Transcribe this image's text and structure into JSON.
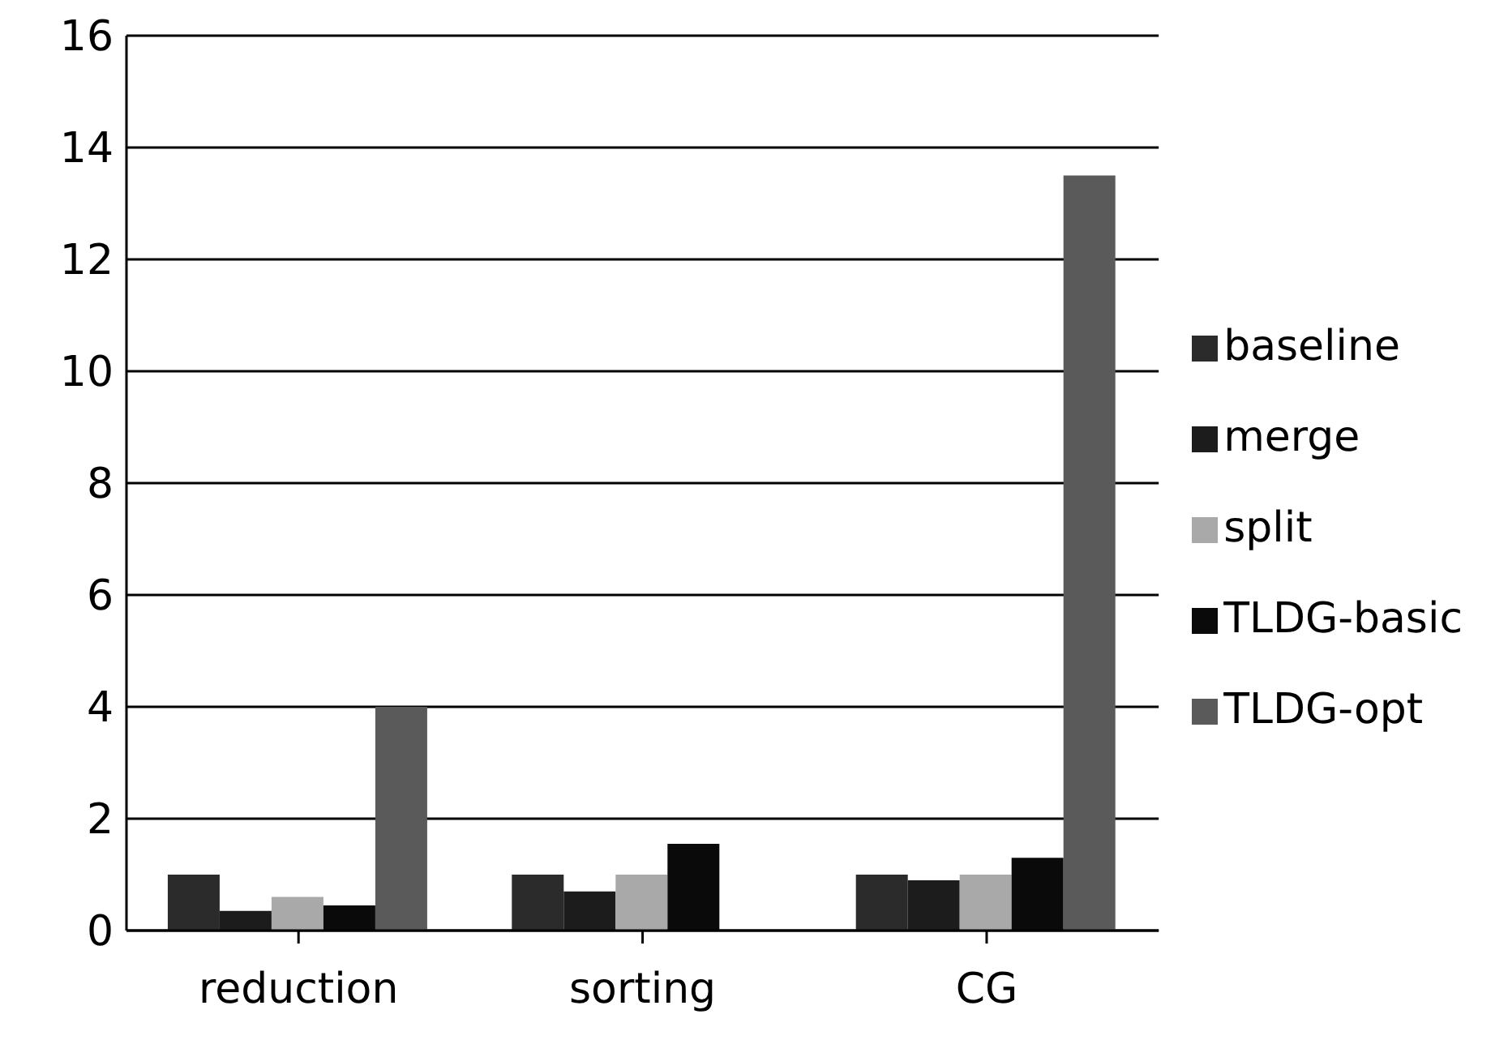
{
  "chart_data": {
    "type": "bar",
    "categories": [
      "reduction",
      "sorting",
      "CG"
    ],
    "series": [
      {
        "name": "baseline",
        "color": "#2b2b2b",
        "values": [
          1.0,
          1.0,
          1.0
        ]
      },
      {
        "name": "merge",
        "color": "#1c1c1c",
        "values": [
          0.35,
          0.7,
          0.9
        ]
      },
      {
        "name": "split",
        "color": "#a9a9a9",
        "values": [
          0.6,
          1.0,
          1.0
        ]
      },
      {
        "name": "TLDG-basic",
        "color": "#0a0a0a",
        "values": [
          0.45,
          1.55,
          1.3
        ]
      },
      {
        "name": "TLDG-opt",
        "color": "#5a5a5a",
        "values": [
          4.0,
          null,
          13.5
        ]
      }
    ],
    "ylim": [
      0,
      16
    ],
    "yticks": [
      0,
      2,
      4,
      6,
      8,
      10,
      12,
      14,
      16
    ],
    "grid": "y",
    "legend": "right"
  }
}
